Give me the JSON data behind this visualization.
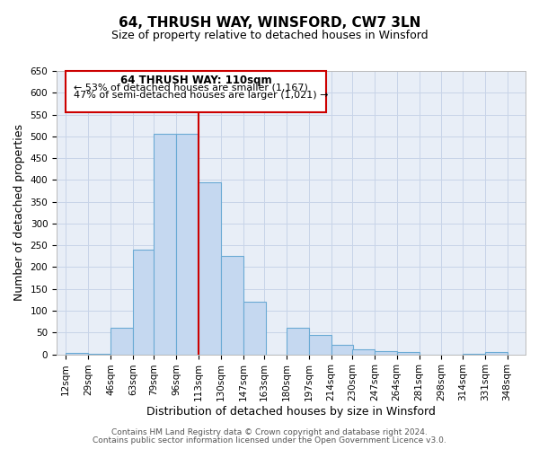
{
  "title": "64, THRUSH WAY, WINSFORD, CW7 3LN",
  "subtitle": "Size of property relative to detached houses in Winsford",
  "xlabel": "Distribution of detached houses by size in Winsford",
  "ylabel": "Number of detached properties",
  "bar_left_edges": [
    12,
    29,
    46,
    63,
    79,
    96,
    113,
    130,
    147,
    163,
    180,
    197,
    214,
    230,
    247,
    264,
    281,
    298,
    314,
    331
  ],
  "bar_heights": [
    3,
    2,
    60,
    240,
    505,
    505,
    395,
    225,
    120,
    0,
    60,
    45,
    22,
    12,
    8,
    5,
    0,
    0,
    2,
    5
  ],
  "bar_color": "#c5d8f0",
  "bar_edge_color": "#6aaad4",
  "reference_line_x": 113,
  "reference_line_color": "#cc0000",
  "ylim": [
    0,
    650
  ],
  "yticks": [
    0,
    50,
    100,
    150,
    200,
    250,
    300,
    350,
    400,
    450,
    500,
    550,
    600,
    650
  ],
  "xtick_labels": [
    "12sqm",
    "29sqm",
    "46sqm",
    "63sqm",
    "79sqm",
    "96sqm",
    "113sqm",
    "130sqm",
    "147sqm",
    "163sqm",
    "180sqm",
    "197sqm",
    "214sqm",
    "230sqm",
    "247sqm",
    "264sqm",
    "281sqm",
    "298sqm",
    "314sqm",
    "331sqm",
    "348sqm"
  ],
  "xtick_positions": [
    12,
    29,
    46,
    63,
    79,
    96,
    113,
    130,
    147,
    163,
    180,
    197,
    214,
    230,
    247,
    264,
    281,
    298,
    314,
    331,
    348
  ],
  "bin_width": 17,
  "annotation_title": "64 THRUSH WAY: 110sqm",
  "annotation_line1": "← 53% of detached houses are smaller (1,167)",
  "annotation_line2": "47% of semi-detached houses are larger (1,021) →",
  "annotation_box_color": "#ffffff",
  "annotation_box_edge_color": "#cc0000",
  "footer_line1": "Contains HM Land Registry data © Crown copyright and database right 2024.",
  "footer_line2": "Contains public sector information licensed under the Open Government Licence v3.0.",
  "plot_bg_color": "#e8eef7",
  "fig_bg_color": "#ffffff",
  "grid_color": "#c8d4e8",
  "title_fontsize": 11,
  "subtitle_fontsize": 9,
  "axis_label_fontsize": 9,
  "tick_fontsize": 7.5,
  "annotation_title_fontsize": 8.5,
  "annotation_text_fontsize": 8,
  "footer_fontsize": 6.5,
  "xlim_left": 5,
  "xlim_right": 362
}
